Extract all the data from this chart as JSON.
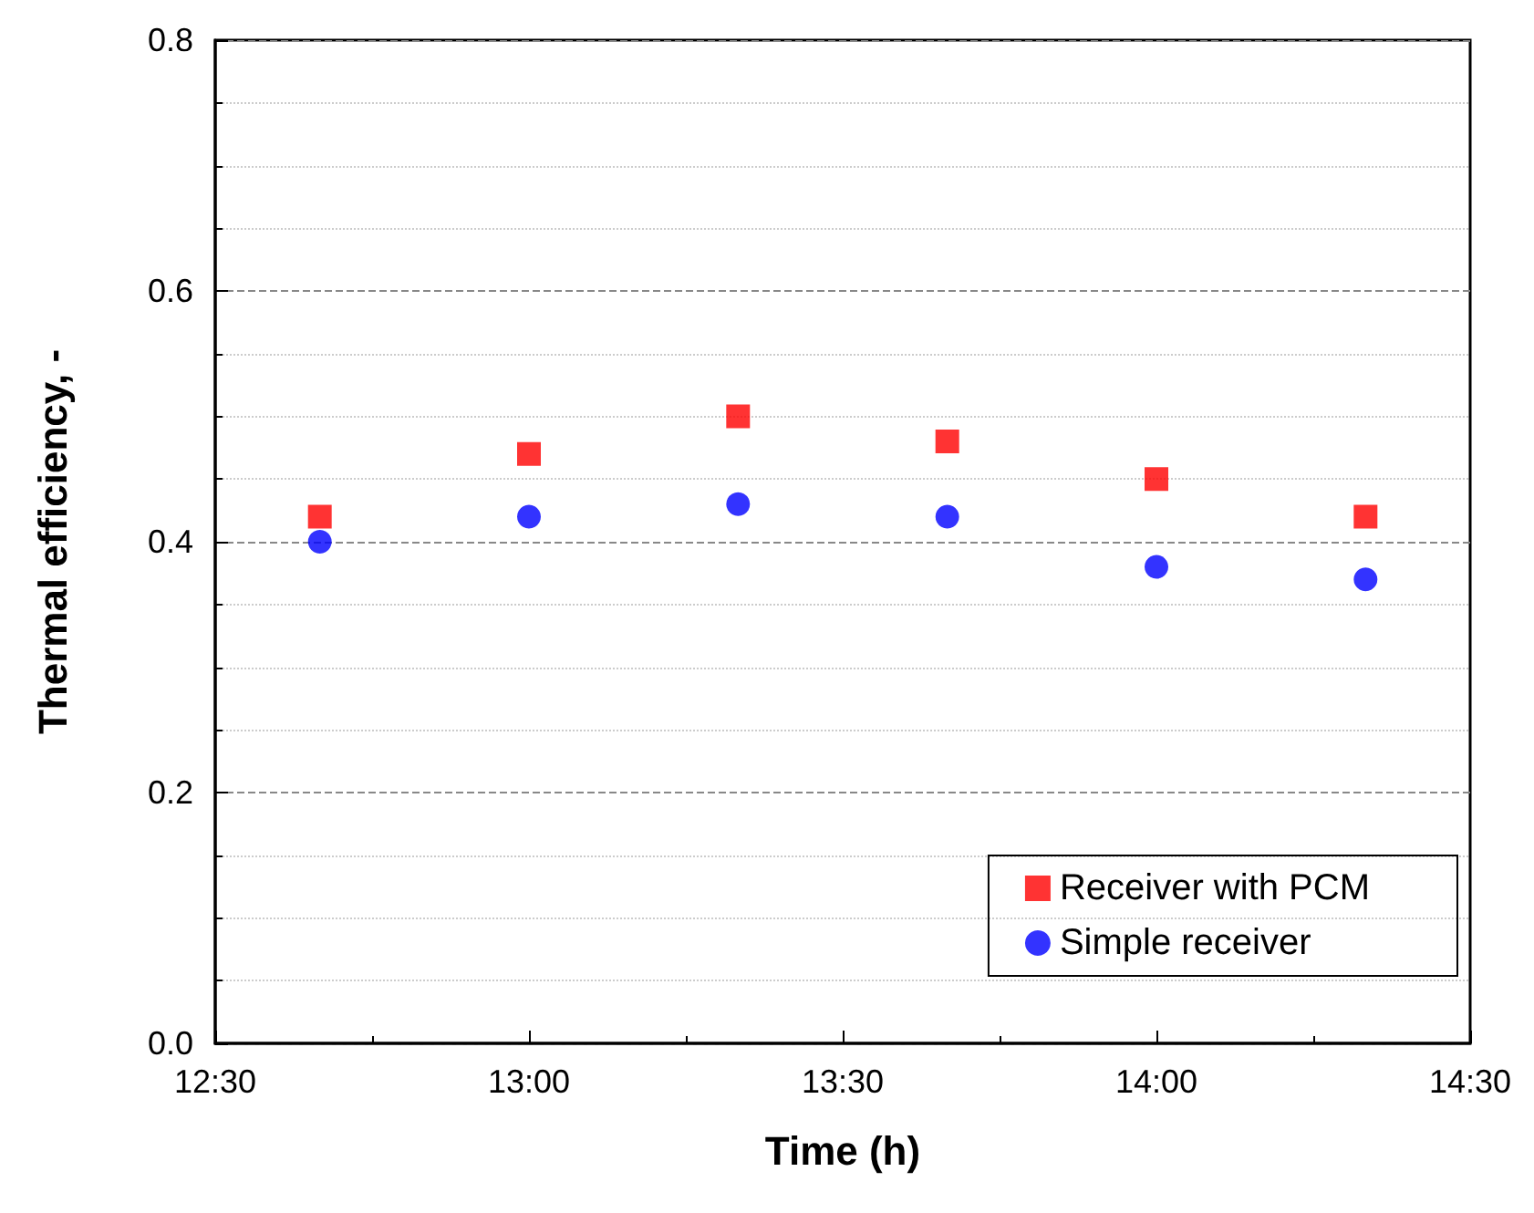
{
  "chart_data": {
    "type": "scatter",
    "xlabel": "Time (h)",
    "ylabel": "Thermal efficiency, -",
    "x": [
      12.6667,
      13,
      13.3333,
      13.6667,
      14,
      14.3333
    ],
    "series": [
      {
        "name": "Receiver with PCM",
        "color": "#ff0000",
        "marker": "square",
        "values": [
          0.42,
          0.47,
          0.5,
          0.48,
          0.45,
          0.42
        ]
      },
      {
        "name": "Simple receiver",
        "color": "#0000ff",
        "marker": "circle",
        "values": [
          0.4,
          0.42,
          0.43,
          0.42,
          0.38,
          0.37
        ]
      }
    ],
    "xlim": [
      12.5,
      14.5
    ],
    "xticks": [
      {
        "value": 12.5,
        "label": "12:30"
      },
      {
        "value": 13,
        "label": "13:00"
      },
      {
        "value": 13.5,
        "label": "13:30"
      },
      {
        "value": 14,
        "label": "14:00"
      },
      {
        "value": 14.5,
        "label": "14:30"
      }
    ],
    "ylim": [
      0,
      0.8
    ],
    "yticks": [
      {
        "value": 0,
        "label": "0.0"
      },
      {
        "value": 0.2,
        "label": "0.2"
      },
      {
        "value": 0.4,
        "label": "0.4"
      },
      {
        "value": 0.6,
        "label": "0.6"
      },
      {
        "value": 0.8,
        "label": "0.8"
      }
    ],
    "grid": "y",
    "legend": "bottom right"
  }
}
